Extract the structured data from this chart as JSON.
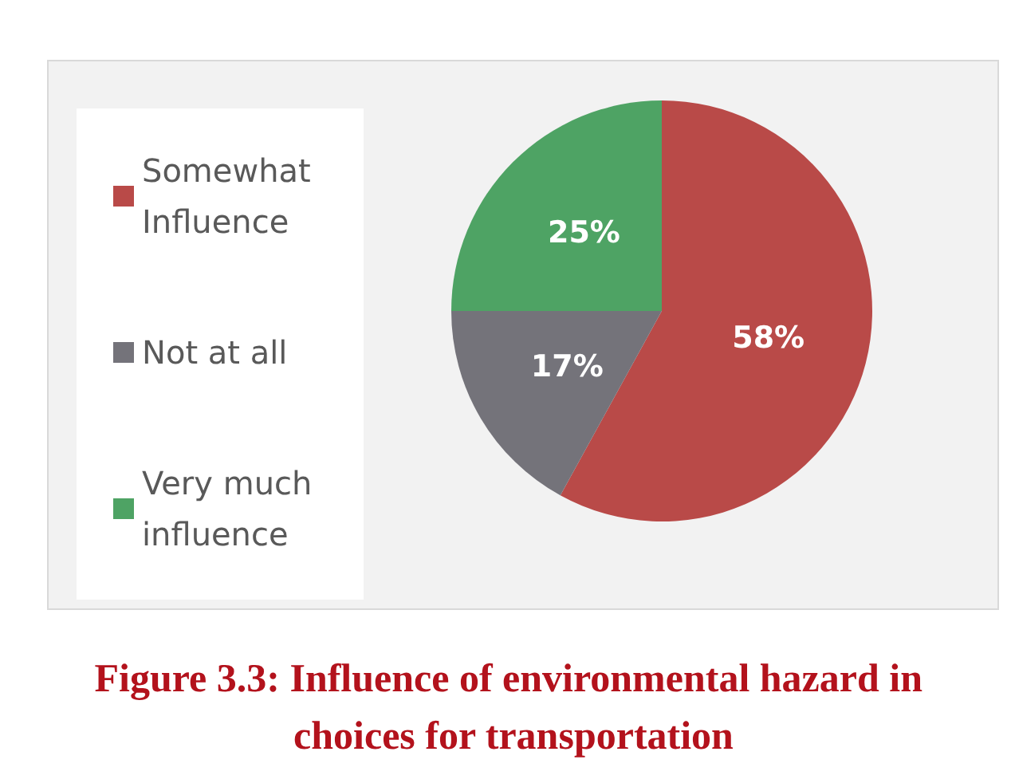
{
  "chart_data": {
    "type": "pie",
    "title": "Figure 3.3: Influence of environmental hazard in choices for transportation",
    "categories": [
      "Somewhat Influence",
      "Not at all",
      "Very much influence"
    ],
    "values": [
      58,
      17,
      25
    ],
    "colors": [
      "#b94a48",
      "#74737a",
      "#4ea364"
    ],
    "value_labels": [
      "58%",
      "17%",
      "25%"
    ],
    "legend": "left"
  }
}
